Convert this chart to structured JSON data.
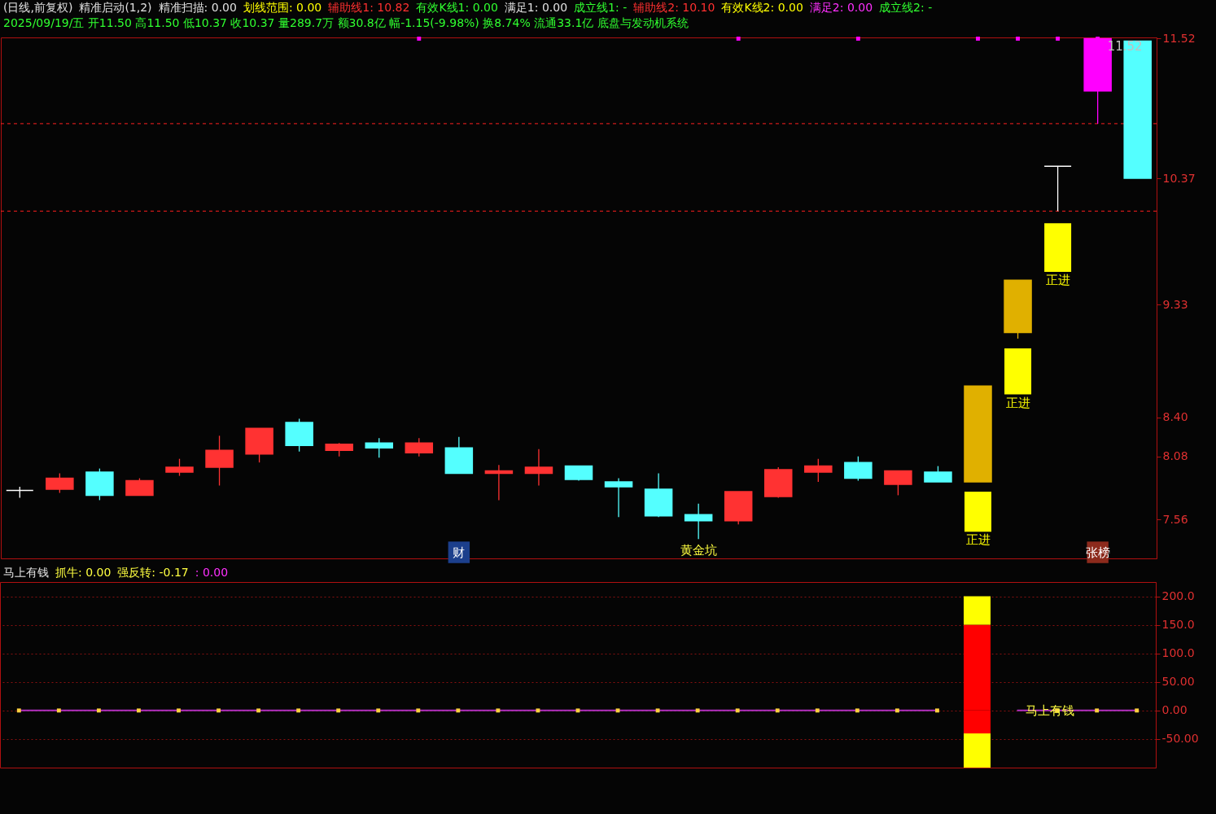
{
  "chart_data": [
    {
      "type": "candlestick",
      "title": "(日线,前复权)",
      "subtitle": "2025/09/19/五 开11.50 高11.50 低10.37 收10.37 量289.7万 额30.8亿 幅-1.15(-9.98%) 换8.74% 流通33.1亿 底盘与发动机系统",
      "categories": [
        null,
        null,
        null,
        null,
        null,
        null,
        null,
        null,
        null,
        null,
        null,
        null,
        null,
        null,
        null,
        null,
        null,
        null,
        null,
        null,
        null,
        null,
        null,
        null,
        null,
        null,
        null,
        null,
        null
      ],
      "ylim": [
        7.24,
        11.53
      ],
      "yticks": [
        11.52,
        10.37,
        9.33,
        {
          "value": 8.4,
          "label": "8.40"
        },
        8.08,
        7.56
      ],
      "tick_labels": "y",
      "ohlc": [
        [
          7.8,
          7.83,
          7.74,
          7.8
        ],
        [
          7.81,
          7.94,
          7.78,
          7.9
        ],
        [
          7.95,
          7.98,
          7.72,
          7.76
        ],
        [
          7.76,
          7.9,
          7.76,
          7.88
        ],
        [
          7.95,
          8.06,
          7.92,
          7.99
        ],
        [
          7.99,
          8.25,
          7.84,
          8.13
        ],
        [
          8.1,
          8.31,
          8.03,
          8.31
        ],
        [
          8.36,
          8.39,
          8.12,
          8.17
        ],
        [
          8.13,
          8.19,
          8.08,
          8.18
        ],
        [
          8.19,
          8.23,
          8.07,
          8.15
        ],
        [
          8.11,
          8.23,
          8.08,
          8.19
        ],
        [
          8.15,
          8.24,
          7.94,
          7.94
        ],
        [
          7.94,
          8.01,
          7.72,
          7.96
        ],
        [
          7.94,
          8.14,
          7.84,
          7.99
        ],
        [
          8.0,
          8.0,
          7.88,
          7.89
        ],
        [
          7.87,
          7.9,
          7.58,
          7.83
        ],
        [
          7.81,
          7.94,
          7.58,
          7.59
        ],
        [
          7.6,
          7.69,
          7.4,
          7.55
        ],
        [
          7.55,
          7.79,
          7.52,
          7.79
        ],
        [
          7.75,
          7.99,
          7.74,
          7.97
        ],
        [
          7.95,
          8.06,
          7.87,
          8.0
        ],
        [
          8.03,
          8.08,
          7.88,
          7.9
        ],
        [
          7.85,
          7.96,
          7.76,
          7.96
        ],
        [
          7.95,
          8.0,
          7.87,
          7.87
        ],
        [
          7.87,
          8.66,
          7.87,
          8.66
        ],
        [
          9.1,
          9.53,
          9.05,
          9.53
        ],
        [
          10.47,
          10.47,
          10.1,
          10.47
        ],
        [
          11.09,
          11.52,
          10.82,
          11.52
        ],
        [
          11.5,
          11.5,
          10.37,
          10.37
        ]
      ],
      "colors": [
        "#ffffff",
        "#ff3232",
        "#54ffff",
        "#ff3232",
        "#ff3232",
        "#ff3232",
        "#ff3232",
        "#54ffff",
        "#ff3232",
        "#54ffff",
        "#ff3232",
        "#54ffff",
        "#ff3232",
        "#ff3232",
        "#54ffff",
        "#54ffff",
        "#54ffff",
        "#54ffff",
        "#ff3232",
        "#ff3232",
        "#ff3232",
        "#54ffff",
        "#ff3232",
        "#54ffff",
        "#e0b000",
        "#e0b000",
        "#ffffff",
        "#ff00ff",
        "#54ffff"
      ],
      "value_labels": [
        null,
        null,
        null,
        null,
        null,
        null,
        null,
        null,
        null,
        null,
        null,
        null,
        null,
        null,
        null,
        null,
        null,
        "黄金坑",
        null,
        null,
        null,
        null,
        null,
        null,
        null,
        null,
        null,
        null,
        null
      ],
      "series": [
        {
          "type": "bar",
          "base": [
            null,
            null,
            null,
            null,
            null,
            null,
            null,
            null,
            null,
            null,
            null,
            null,
            null,
            null,
            null,
            null,
            null,
            null,
            null,
            null,
            null,
            null,
            null,
            null,
            7.46,
            8.59,
            9.6,
            null,
            null
          ],
          "values": [
            null,
            null,
            null,
            null,
            null,
            null,
            null,
            null,
            null,
            null,
            null,
            null,
            null,
            null,
            null,
            null,
            null,
            null,
            null,
            null,
            null,
            null,
            null,
            null,
            0.33,
            0.38,
            0.4,
            null,
            null
          ],
          "value_labels": [
            null,
            null,
            null,
            null,
            null,
            null,
            null,
            null,
            null,
            null,
            null,
            null,
            null,
            null,
            null,
            null,
            null,
            null,
            null,
            null,
            null,
            null,
            null,
            null,
            "正进",
            "正进",
            "正进",
            null,
            null
          ],
          "color": "#ffff00"
        },
        {
          "type": "scatter",
          "values": [
            null,
            null,
            null,
            null,
            null,
            null,
            null,
            null,
            null,
            null,
            11.52,
            null,
            null,
            null,
            null,
            null,
            null,
            null,
            11.52,
            null,
            null,
            11.52,
            null,
            null,
            11.52,
            11.52,
            11.52,
            11.52,
            null
          ],
          "value_labels": [
            null,
            null,
            null,
            null,
            null,
            null,
            null,
            null,
            null,
            null,
            null,
            null,
            null,
            null,
            null,
            null,
            null,
            null,
            null,
            null,
            null,
            null,
            null,
            null,
            null,
            null,
            null,
            "11.52",
            null
          ],
          "color": "#ff00ff",
          "marker": "square"
        },
        {
          "type": "scatter",
          "values": [
            null,
            null,
            null,
            null,
            null,
            null,
            null,
            null,
            null,
            null,
            null,
            7.29,
            null,
            null,
            null,
            null,
            null,
            null,
            null,
            null,
            null,
            null,
            null,
            null,
            null,
            null,
            null,
            7.29,
            null
          ],
          "value_labels": [
            null,
            null,
            null,
            null,
            null,
            null,
            null,
            null,
            null,
            null,
            null,
            "财",
            null,
            null,
            null,
            null,
            null,
            null,
            null,
            null,
            null,
            null,
            null,
            null,
            null,
            null,
            null,
            "张榜",
            null
          ],
          "colors": [
            null,
            null,
            null,
            null,
            null,
            null,
            null,
            null,
            null,
            null,
            null,
            "#1c3f8c",
            null,
            null,
            null,
            null,
            null,
            null,
            null,
            null,
            null,
            null,
            null,
            null,
            null,
            null,
            null,
            "#8c2a1c",
            null
          ],
          "marker": "square"
        }
      ],
      "ref_lines": [
        {
          "axis": "y",
          "value": 10.82,
          "color": "#ff2020",
          "line_style": "dashed"
        },
        {
          "axis": "y",
          "value": 10.1,
          "color": "#ff2020",
          "line_style": "dashed"
        }
      ],
      "annotations": [
        "精准启动(1,2)",
        "精准扫描: 0.00",
        "划线范围: 0.00",
        "辅助线1: 10.82",
        "有效K线1: 0.00",
        "满足1: 0.00",
        "成立线1: -",
        "辅助线2: 10.10",
        "有效K线2: 0.00",
        "满足2: 0.00",
        "成立线2: -"
      ]
    },
    {
      "type": "bar",
      "title": "马上有钱",
      "stacked": true,
      "categories": [
        null,
        null,
        null,
        null,
        null,
        null,
        null,
        null,
        null,
        null,
        null,
        null,
        null,
        null,
        null,
        null,
        null,
        null,
        null,
        null,
        null,
        null,
        null,
        null,
        null,
        null,
        null,
        null,
        null
      ],
      "ylim": [
        -100,
        225
      ],
      "yticks": [
        {
          "value": 200,
          "label": "200.0"
        },
        {
          "value": 150,
          "label": "150.0"
        },
        {
          "value": 100,
          "label": "100.0"
        },
        {
          "value": 50,
          "label": "50.00"
        },
        {
          "value": 0,
          "label": "0.00"
        },
        {
          "value": -50,
          "label": "-50.00"
        }
      ],
      "tick_labels": "y",
      "grid": "y",
      "series": [
        {
          "values": [
            null,
            null,
            null,
            null,
            null,
            null,
            null,
            null,
            null,
            null,
            null,
            null,
            null,
            null,
            null,
            null,
            null,
            null,
            null,
            null,
            null,
            null,
            null,
            null,
            150,
            null,
            null,
            null,
            null
          ],
          "color": "#ff0000"
        },
        {
          "values": [
            null,
            null,
            null,
            null,
            null,
            null,
            null,
            null,
            null,
            null,
            null,
            null,
            null,
            null,
            null,
            null,
            null,
            null,
            null,
            null,
            null,
            null,
            null,
            null,
            50,
            null,
            null,
            null,
            null
          ],
          "color": "#ffff00"
        },
        {
          "values": [
            null,
            null,
            null,
            null,
            null,
            null,
            null,
            null,
            null,
            null,
            null,
            null,
            null,
            null,
            null,
            null,
            null,
            null,
            null,
            null,
            null,
            null,
            null,
            null,
            -40,
            null,
            null,
            null,
            null
          ],
          "color": "#ff0000"
        },
        {
          "values": [
            null,
            null,
            null,
            null,
            null,
            null,
            null,
            null,
            null,
            null,
            null,
            null,
            null,
            null,
            null,
            null,
            null,
            null,
            null,
            null,
            null,
            null,
            null,
            null,
            -60,
            null,
            null,
            null,
            null
          ],
          "color": "#ffff00"
        },
        {
          "type": "line",
          "values": [
            0,
            0,
            0,
            0,
            0,
            0,
            0,
            0,
            0,
            0,
            0,
            0,
            0,
            0,
            0,
            0,
            0,
            0,
            0,
            0,
            0,
            0,
            0,
            0,
            null,
            0,
            0,
            0,
            0
          ],
          "value_labels": [
            null,
            null,
            null,
            null,
            null,
            null,
            null,
            null,
            null,
            null,
            null,
            null,
            null,
            null,
            null,
            null,
            null,
            null,
            null,
            null,
            null,
            null,
            null,
            null,
            null,
            "马上有钱",
            null,
            null,
            null
          ],
          "color": "#b030c0"
        },
        {
          "type": "scatter",
          "values": [
            0,
            0,
            0,
            0,
            0,
            0,
            0,
            0,
            0,
            0,
            0,
            0,
            0,
            0,
            0,
            0,
            0,
            0,
            0,
            0,
            0,
            0,
            0,
            0,
            null,
            null,
            0,
            0,
            0
          ],
          "color": "#ffd040",
          "marker": "square"
        }
      ],
      "annotations": [
        "抓牛: 0.00",
        "强反转: -0.17",
        ": 0.00"
      ]
    }
  ]
}
